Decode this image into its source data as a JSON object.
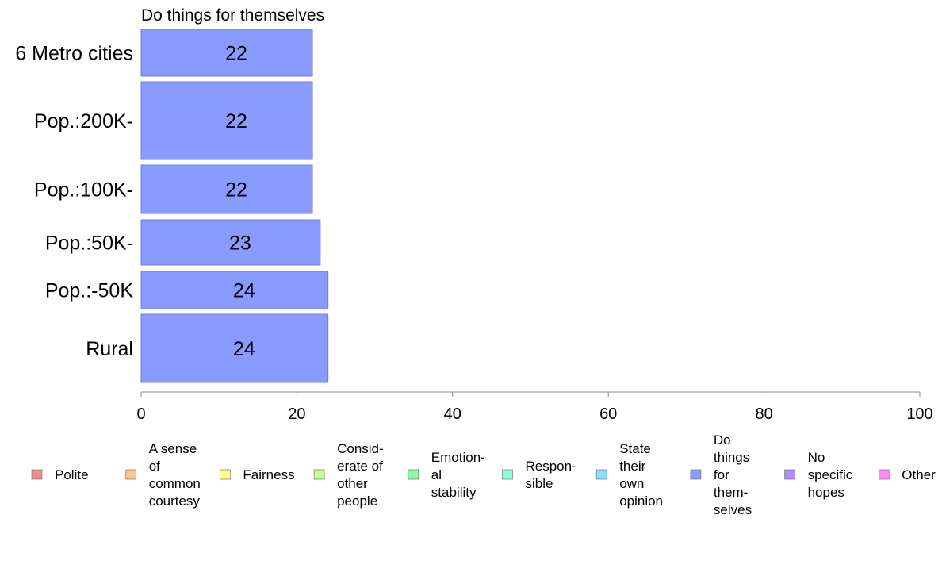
{
  "chart_data": {
    "type": "bar",
    "orientation": "horizontal",
    "title": "Do things for themselves",
    "categories": [
      "6 Metro cities",
      "Pop.:200K-",
      "Pop.:100K-",
      "Pop.:50K-",
      "Pop.:-50K",
      "Rural"
    ],
    "values": [
      22,
      22,
      22,
      23,
      24,
      24
    ],
    "data_labels": [
      "22",
      "22",
      "22",
      "23",
      "24",
      "24"
    ],
    "xlim": [
      0,
      100
    ],
    "xticks": [
      "0",
      "20",
      "40",
      "60",
      "80",
      "100"
    ],
    "grid": false,
    "legend_position": "bottom",
    "bar_color": "#8a9bff",
    "legend": [
      {
        "label": "Polite",
        "color": "#f58a8a"
      },
      {
        "label": "A sense of common courtesy",
        "color": "#fbc48a"
      },
      {
        "label": "Fairness",
        "color": "#ffff8a"
      },
      {
        "label": "Consid-erate of other people",
        "color": "#c4ff8a"
      },
      {
        "label": "Emotion-al stability",
        "color": "#8aff9b"
      },
      {
        "label": "Respon-sible",
        "color": "#8affde"
      },
      {
        "label": "State their own opinion",
        "color": "#8adeff"
      },
      {
        "label": "Do things for them-selves",
        "color": "#8a9bff"
      },
      {
        "label": "No specific hopes",
        "color": "#b48aff"
      },
      {
        "label": "Other",
        "color": "#ff8af5"
      }
    ]
  }
}
